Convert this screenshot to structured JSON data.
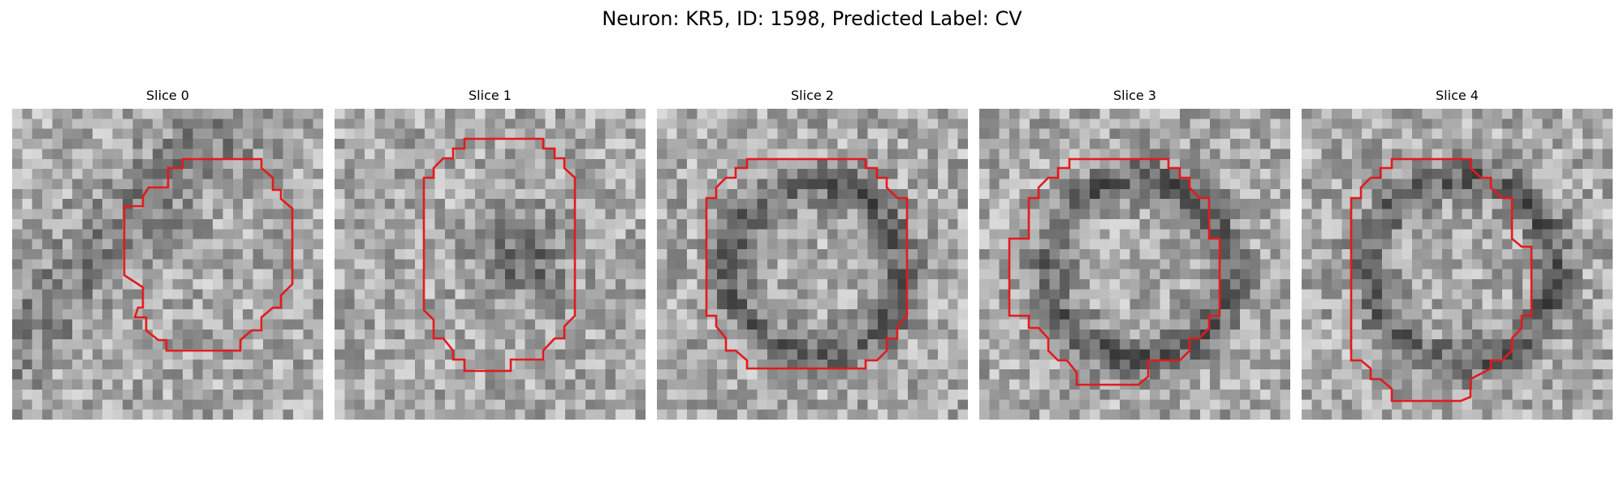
{
  "figure": {
    "title": "Neuron: KR5, ID: 1598, Predicted Label: CV"
  },
  "colors": {
    "outline": "#e31a1c",
    "background": "#ffffff"
  },
  "slices": [
    {
      "title": "Slice 0"
    },
    {
      "title": "Slice 1"
    },
    {
      "title": "Slice 2"
    },
    {
      "title": "Slice 3"
    },
    {
      "title": "Slice 4"
    }
  ]
}
